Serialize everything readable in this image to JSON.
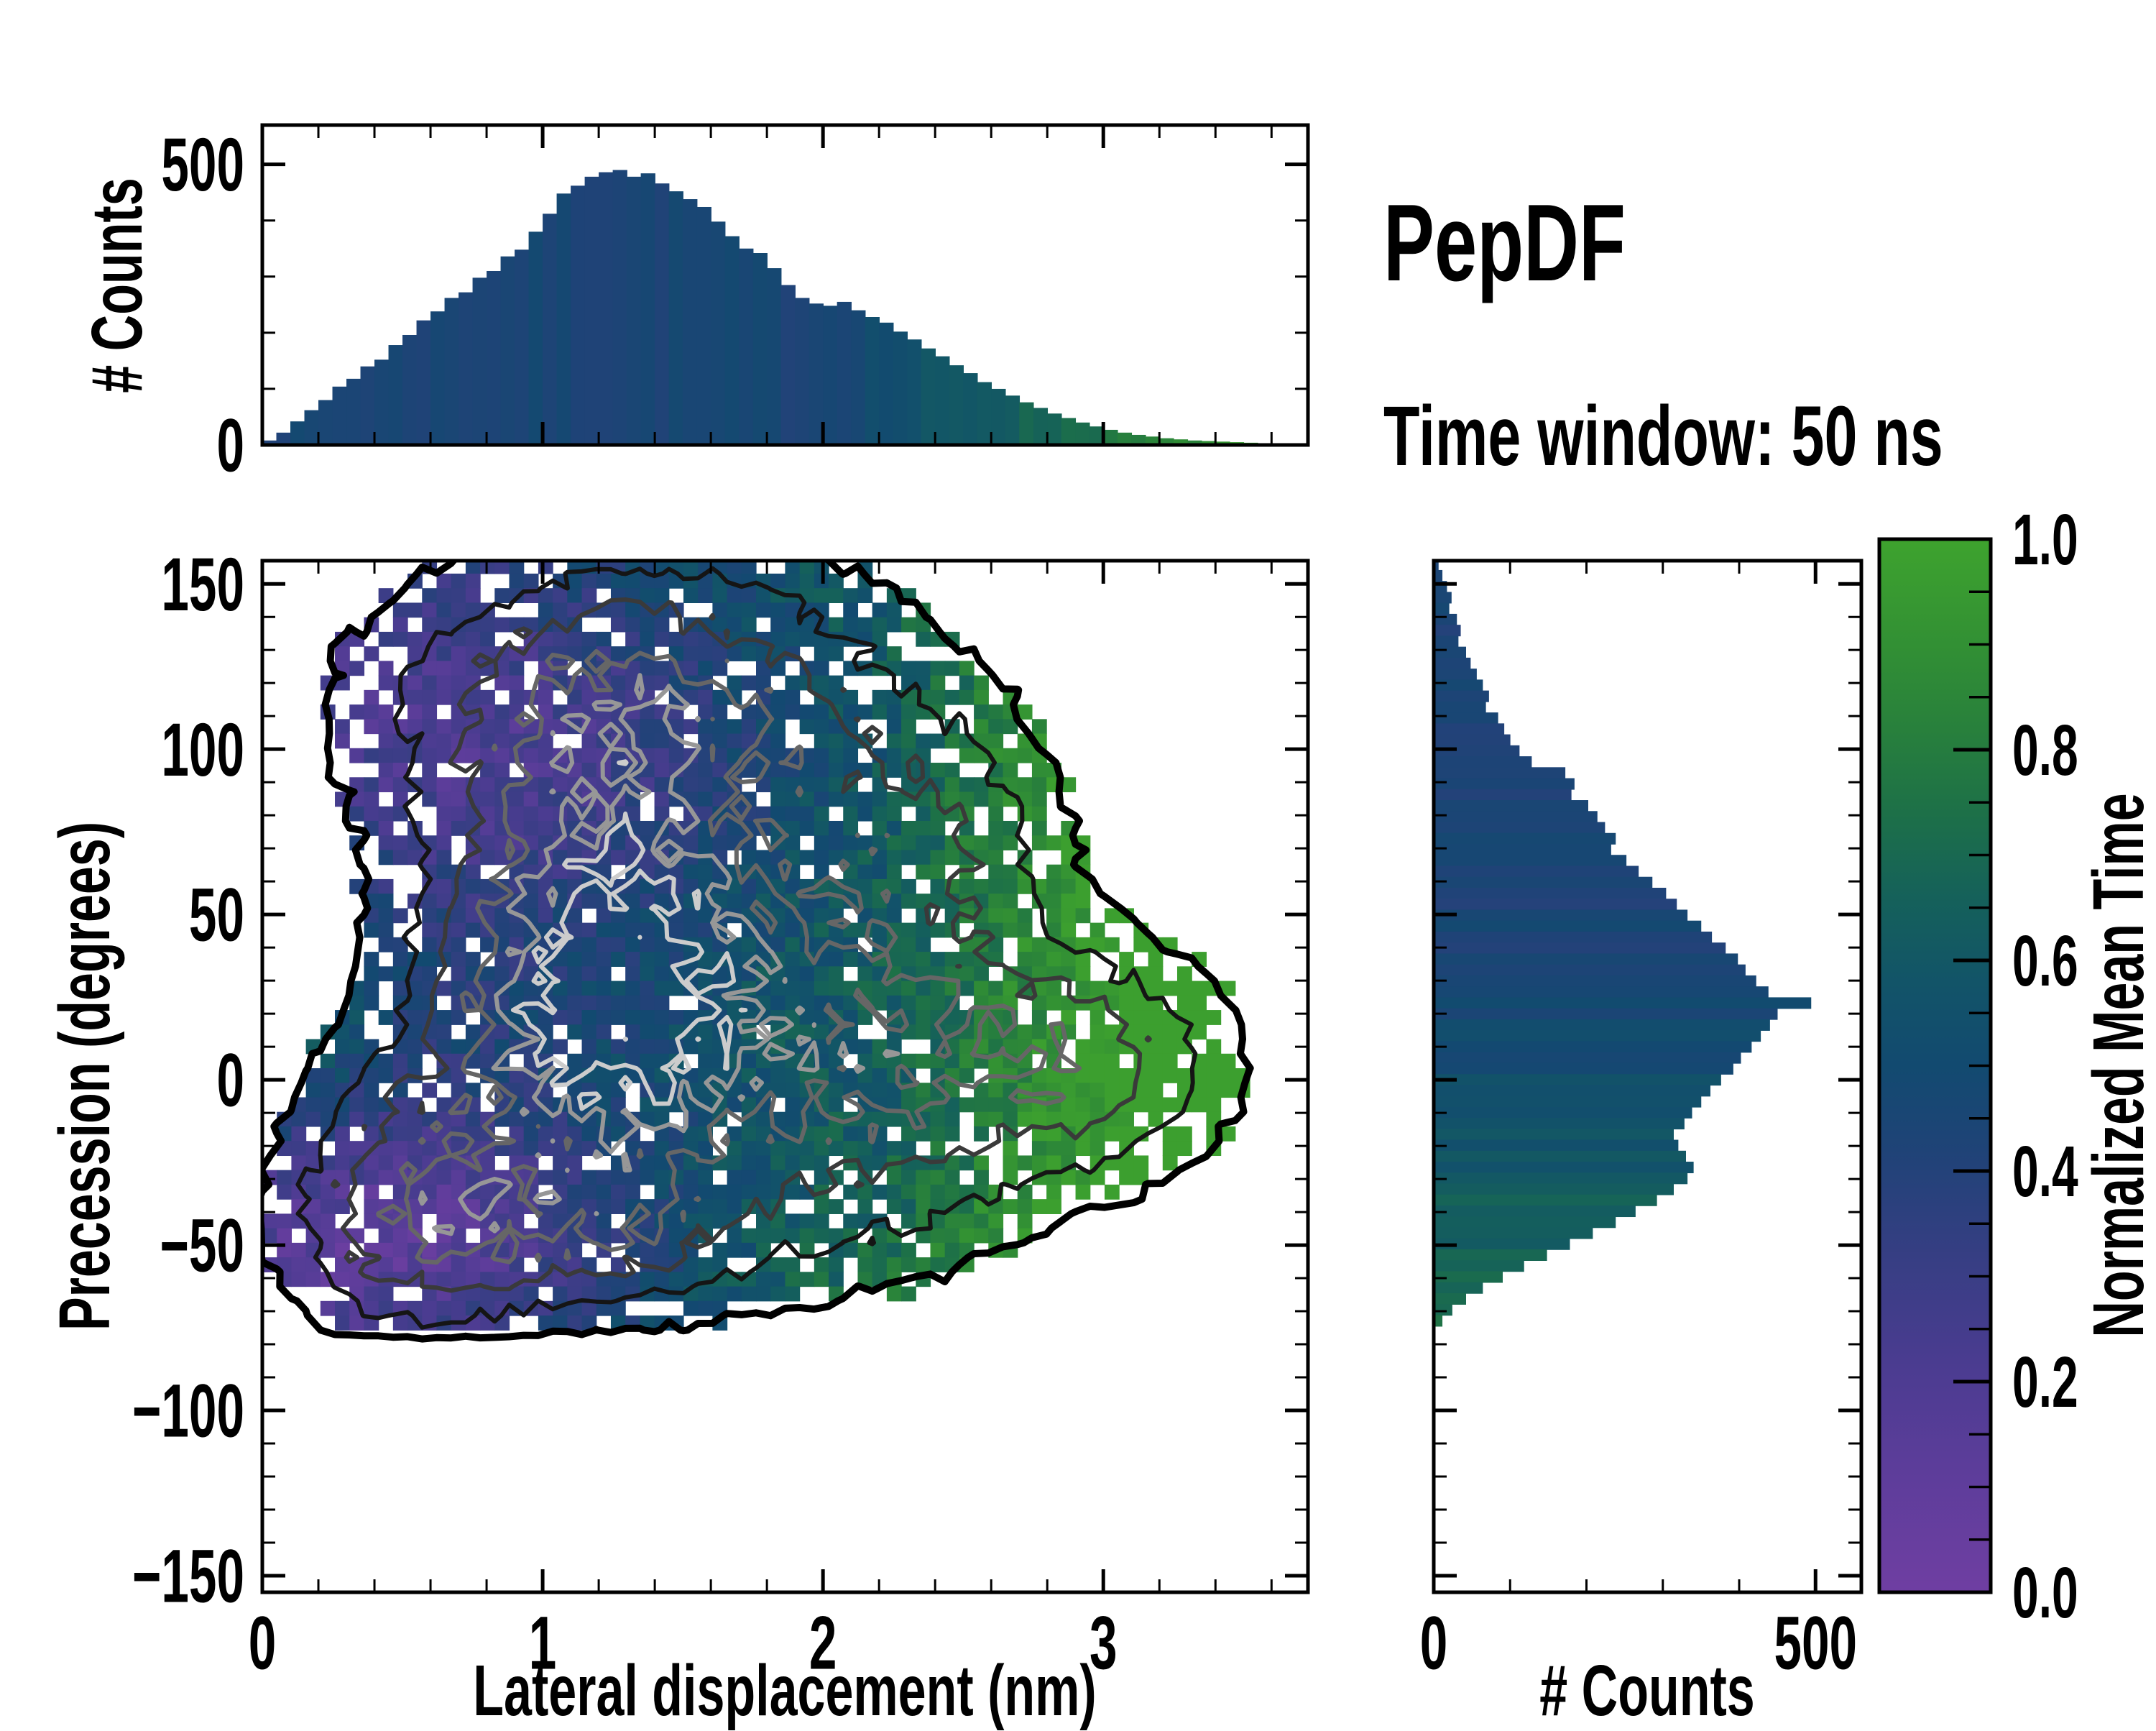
{
  "figure": {
    "title": "PepDF",
    "subtitle": "Time window: 50 ns",
    "background": "#ffffff",
    "text_color": "#000000"
  },
  "panels": {
    "top_histogram": {
      "ylabel": "# Counts",
      "ylim": [
        0,
        570
      ],
      "yticks": [
        {
          "v": 0,
          "label": "0"
        },
        {
          "v": 500,
          "label": "500"
        }
      ],
      "yminors": [
        100,
        200,
        300,
        400
      ]
    },
    "joint": {
      "xlabel": "Lateral displacement (nm)",
      "ylabel": "Precession (degrees)",
      "xlim": [
        0,
        3.73
      ],
      "ylim": [
        -155,
        157
      ],
      "xticks": [
        {
          "v": 0,
          "label": "0"
        },
        {
          "v": 1,
          "label": "1"
        },
        {
          "v": 2,
          "label": "2"
        },
        {
          "v": 3,
          "label": "3"
        }
      ],
      "xminor_step": 0.2,
      "yticks": [
        {
          "v": 150,
          "label": "150"
        },
        {
          "v": 100,
          "label": "100"
        },
        {
          "v": 50,
          "label": "50"
        },
        {
          "v": 0,
          "label": "0"
        },
        {
          "v": -50,
          "label": "−50"
        },
        {
          "v": -100,
          "label": "−100"
        },
        {
          "v": -150,
          "label": "−150"
        }
      ],
      "yminor_step": 10
    },
    "right_histogram": {
      "xlabel": "# Counts",
      "xlim": [
        0,
        560
      ],
      "xticks": [
        {
          "v": 0,
          "label": "0"
        },
        {
          "v": 500,
          "label": "500"
        }
      ],
      "xminors": [
        100,
        200,
        300,
        400
      ]
    },
    "colorbar": {
      "label": "Normalized Mean Time",
      "lim": [
        0,
        1
      ],
      "ticks": [
        {
          "v": 0,
          "label": "0.0"
        },
        {
          "v": 0.2,
          "label": "0.2"
        },
        {
          "v": 0.4,
          "label": "0.4"
        },
        {
          "v": 0.6,
          "label": "0.6"
        },
        {
          "v": 0.8,
          "label": "0.8"
        },
        {
          "v": 1,
          "label": "1.0"
        }
      ],
      "minor_step": 0.05,
      "colormap_stops": [
        [
          0.0,
          "#6f3ea2"
        ],
        [
          0.12,
          "#5c3d9a"
        ],
        [
          0.22,
          "#4a3c90"
        ],
        [
          0.32,
          "#363e83"
        ],
        [
          0.42,
          "#1f4377"
        ],
        [
          0.5,
          "#124a70"
        ],
        [
          0.58,
          "#125468"
        ],
        [
          0.66,
          "#15615a"
        ],
        [
          0.74,
          "#1d7048"
        ],
        [
          0.82,
          "#28803c"
        ],
        [
          0.9,
          "#329034"
        ],
        [
          1.0,
          "#3ea32e"
        ]
      ]
    }
  },
  "chart_data": [
    {
      "id": "top_marginal",
      "type": "bar",
      "orientation": "vertical",
      "xlabel": "Lateral displacement (nm)",
      "ylabel": "# Counts",
      "x_start": 0,
      "bin_width": 0.05,
      "ylim": [
        0,
        570
      ],
      "values": [
        8,
        22,
        42,
        62,
        80,
        104,
        118,
        140,
        152,
        178,
        196,
        222,
        238,
        262,
        272,
        298,
        310,
        336,
        348,
        380,
        412,
        448,
        462,
        478,
        486,
        490,
        478,
        484,
        466,
        452,
        438,
        424,
        398,
        372,
        350,
        342,
        315,
        285,
        262,
        252,
        248,
        255,
        240,
        228,
        218,
        202,
        188,
        172,
        158,
        142,
        128,
        112,
        100,
        88,
        76,
        66,
        56,
        48,
        40,
        33,
        27,
        22,
        18,
        15,
        12,
        10,
        8,
        7,
        6,
        5,
        4,
        3,
        3,
        2
      ],
      "bars_colored_by": "normalized mean time of each bin",
      "mean_time_rule": {
        "base": 0.45,
        "onset_nm": 1.9,
        "span_nm": 1.8,
        "gain": 0.55,
        "power": 1.2,
        "jitter": 0.04
      }
    },
    {
      "id": "joint_hist2d",
      "type": "heatmap",
      "xlabel": "Lateral displacement (nm)",
      "ylabel": "Precession (degrees)",
      "color_label": "Normalized Mean Time",
      "xlim": [
        0,
        3.73
      ],
      "ylim": [
        -155,
        157
      ],
      "nx": 72,
      "ny": 53,
      "cell_nm": 0.0518,
      "cell_deg": 4.4,
      "grid_top_deg": 157.5,
      "density_gaussians": [
        [
          1.25,
          28,
          0.52,
          55,
          1.0
        ],
        [
          1.35,
          112,
          0.75,
          38,
          0.5
        ],
        [
          2.15,
          8,
          0.55,
          48,
          0.45
        ],
        [
          0.55,
          -35,
          0.38,
          38,
          0.35
        ],
        [
          2.9,
          5,
          0.45,
          30,
          0.34
        ],
        [
          2.3,
          75,
          0.45,
          35,
          0.25
        ],
        [
          1.1,
          -45,
          0.65,
          20,
          0.3
        ]
      ],
      "occupancy_threshold": 0.055,
      "hole_base": 0.05,
      "hole_gain": 0.3,
      "hole_decay": 4,
      "mean_time_model": {
        "base": 0.3,
        "x_slope": 0.155,
        "left_teal_pocket": [
          0.05,
          30,
          0.4,
          55,
          0.3
        ],
        "upper_purple_band": [
          1.0,
          100,
          0.95,
          48,
          -0.24
        ],
        "lower_left_purple_band": [
          0.55,
          -45,
          0.75,
          35,
          -0.28
        ],
        "right_green_boost": [
          2.2,
          0.9,
          0.26
        ],
        "bottom_right_green": [
          20,
          50,
          1.3,
          0.8,
          0.1
        ],
        "noise": 0.2
      },
      "contours": {
        "levels": [
          0.055,
          0.15,
          0.28,
          0.44,
          0.6,
          0.76
        ],
        "colors": [
          "#000000",
          "#151515",
          "#3a3a3a",
          "#666666",
          "#979797",
          "#cccccc"
        ],
        "widths": [
          10,
          6,
          6,
          6,
          6,
          6
        ],
        "node_noise": 0.45
      },
      "seed": 42,
      "contour_seed": 1337
    },
    {
      "id": "right_marginal",
      "type": "bar",
      "orientation": "horizontal",
      "xlabel": "# Counts",
      "ylabel": "Precession (degrees)",
      "y_start": 157.5,
      "bin_step_deg": 3.314,
      "xlim": [
        0,
        560
      ],
      "values": [
        4,
        9,
        15,
        21,
        18,
        28,
        33,
        30,
        40,
        46,
        54,
        62,
        70,
        66,
        82,
        90,
        98,
        110,
        126,
        170,
        182,
        178,
        200,
        212,
        222,
        236,
        230,
        250,
        266,
        284,
        302,
        316,
        330,
        348,
        362,
        380,
        396,
        406,
        420,
        436,
        492,
        448,
        438,
        426,
        414,
        400,
        390,
        374,
        360,
        348,
        336,
        326,
        312,
        318,
        328,
        338,
        330,
        312,
        290,
        262,
        236,
        206,
        176,
        146,
        116,
        88,
        62,
        40,
        22,
        9
      ],
      "bars_colored_by": "normalized mean time of each bin",
      "mean_time_rule": {
        "base": 0.44,
        "pivot_deg": 35,
        "scale_deg": 115,
        "gain": 0.3,
        "jitter": 0.05
      }
    }
  ]
}
